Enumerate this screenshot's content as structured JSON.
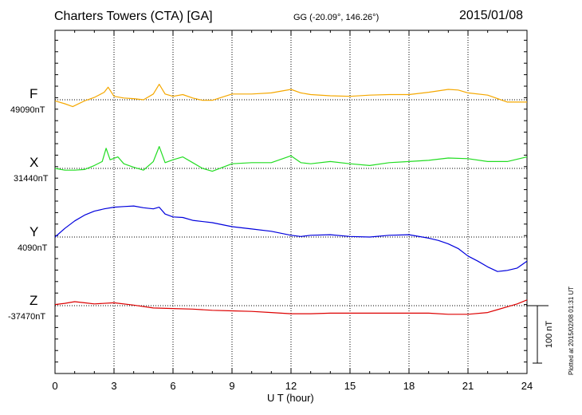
{
  "header": {
    "station": "Charters Towers (CTA)  [GA]",
    "coords": "GG (-20.09°, 146.26°)",
    "date": "2015/01/08"
  },
  "footnote": "Plotted at 2015/02/08 01:31  UT",
  "colors": {
    "F": "#f5a800",
    "X": "#22dd22",
    "Y": "#0000dd",
    "Z": "#dd0000"
  },
  "chart_data": {
    "type": "line",
    "xlabel": "U T (hour)",
    "xlim": [
      0,
      24
    ],
    "xticks": [
      "0",
      "3",
      "6",
      "9",
      "12",
      "15",
      "18",
      "21",
      "24"
    ],
    "scale_bar": "100 nT",
    "scale_bar_value_nT": 100,
    "grid": true,
    "series": [
      {
        "name": "F",
        "baseline": "49090nT",
        "baseline_nT": 49090,
        "x": [
          0,
          0.5,
          0.9,
          1.5,
          2.0,
          2.5,
          2.7,
          3.0,
          3.5,
          4.0,
          4.5,
          5.0,
          5.3,
          5.6,
          6.0,
          6.5,
          7.0,
          7.5,
          8.0,
          9.0,
          10.0,
          11.0,
          12.0,
          12.5,
          13.0,
          14.0,
          15.0,
          16.0,
          17.0,
          18.0,
          19.0,
          20.0,
          20.5,
          21.0,
          22.0,
          23.0,
          24.0
        ],
        "y": [
          -2,
          -7,
          -12,
          -2,
          4,
          13,
          22,
          6,
          3,
          2,
          0,
          10,
          27,
          10,
          6,
          9,
          3,
          -1,
          -1,
          10,
          10,
          12,
          18,
          12,
          9,
          7,
          6,
          8,
          9,
          9,
          13,
          18,
          17,
          12,
          8,
          -4,
          -4
        ]
      },
      {
        "name": "X",
        "baseline": "31440nT",
        "baseline_nT": 31440,
        "x": [
          0,
          0.5,
          1.0,
          1.5,
          2.0,
          2.4,
          2.6,
          2.8,
          3.2,
          3.5,
          4.0,
          4.5,
          5.0,
          5.3,
          5.6,
          6.0,
          6.5,
          7.0,
          7.5,
          8.0,
          9.0,
          10.0,
          11.0,
          12.0,
          12.5,
          13.0,
          14.0,
          15.0,
          16.0,
          17.0,
          18.0,
          19.0,
          20.0,
          21.0,
          22.0,
          23.0,
          24.0
        ],
        "y": [
          0,
          -3,
          -3,
          -2,
          5,
          12,
          35,
          15,
          20,
          8,
          2,
          -3,
          12,
          38,
          10,
          15,
          20,
          10,
          0,
          -5,
          8,
          10,
          10,
          22,
          10,
          8,
          12,
          8,
          5,
          10,
          12,
          14,
          18,
          17,
          12,
          12,
          20
        ]
      },
      {
        "name": "Y",
        "baseline": "4090nT",
        "baseline_nT": 4090,
        "x": [
          0,
          0.5,
          1.0,
          1.5,
          2.0,
          2.5,
          3.0,
          3.5,
          4.0,
          4.5,
          5.0,
          5.3,
          5.6,
          6.0,
          6.5,
          7.0,
          8.0,
          9.0,
          10.0,
          11.0,
          12.0,
          12.5,
          13.0,
          14.0,
          15.0,
          16.0,
          17.0,
          18.0,
          19.0,
          19.5,
          20.0,
          20.5,
          21.0,
          21.5,
          22.0,
          22.5,
          23.0,
          23.5,
          24.0
        ],
        "y": [
          0,
          15,
          28,
          38,
          45,
          49,
          52,
          53,
          54,
          51,
          49,
          52,
          40,
          35,
          34,
          29,
          25,
          18,
          14,
          10,
          3,
          1,
          3,
          4,
          1,
          0,
          3,
          4,
          -2,
          -6,
          -12,
          -20,
          -33,
          -42,
          -52,
          -60,
          -58,
          -54,
          -42
        ]
      },
      {
        "name": "Z",
        "baseline": "-37470nT",
        "baseline_nT": -37470,
        "x": [
          0,
          0.5,
          1.0,
          1.5,
          2.0,
          3.0,
          4.0,
          5.0,
          6.0,
          7.0,
          8.0,
          9.0,
          10.0,
          11.0,
          12.0,
          13.0,
          14.0,
          15.0,
          16.0,
          17.0,
          18.0,
          19.0,
          20.0,
          21.0,
          22.0,
          22.5,
          23.0,
          23.5,
          24.0
        ],
        "y": [
          2,
          4,
          7,
          5,
          3,
          5,
          1,
          -4,
          -5,
          -6,
          -8,
          -9,
          -10,
          -12,
          -14,
          -14,
          -13,
          -13,
          -13,
          -13,
          -13,
          -13,
          -15,
          -15,
          -12,
          -7,
          -2,
          3,
          10
        ]
      }
    ]
  }
}
